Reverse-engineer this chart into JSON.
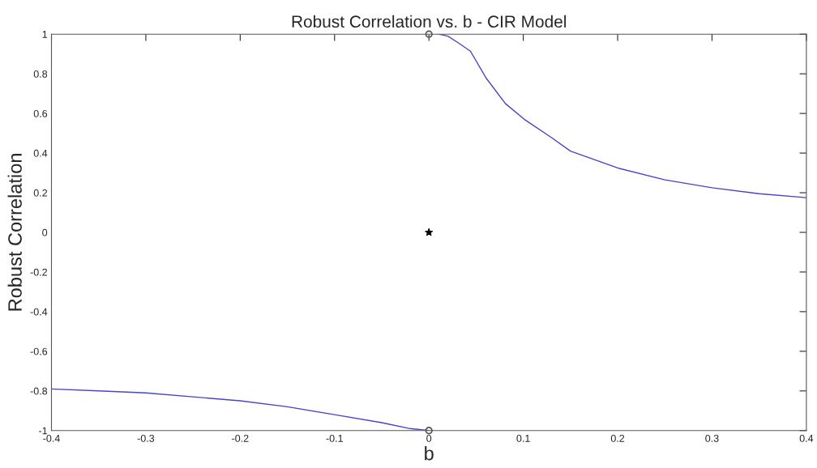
{
  "chart_data": {
    "type": "line",
    "title": "Robust Correlation vs. b - CIR Model",
    "xlabel": "b",
    "ylabel": "Robust Correlation",
    "xlim": [
      -0.4,
      0.4
    ],
    "ylim": [
      -1,
      1
    ],
    "xticks": [
      -0.4,
      -0.3,
      -0.2,
      -0.1,
      0,
      0.1,
      0.2,
      0.3,
      0.4
    ],
    "yticks": [
      -1,
      -0.8,
      -0.6,
      -0.4,
      -0.2,
      0,
      0.2,
      0.4,
      0.6,
      0.8,
      1
    ],
    "grid": false,
    "legend": false,
    "series": [
      {
        "color": "#4444cc",
        "x": [
          -0.4,
          -0.35,
          -0.3,
          -0.25,
          -0.2,
          -0.15,
          -0.1,
          -0.05,
          -0.02,
          0
        ],
        "values": [
          -0.79,
          -0.8,
          -0.81,
          -0.83,
          -0.85,
          -0.88,
          -0.92,
          -0.96,
          -0.99,
          -1
        ]
      },
      {
        "color": "#4444cc",
        "x": [
          0.01,
          0.02,
          0.03,
          0.044,
          0.061,
          0.081,
          0.102,
          0.13,
          0.15,
          0.2,
          0.25,
          0.3,
          0.35,
          0.4
        ],
        "values": [
          1,
          0.99,
          0.96,
          0.914,
          0.776,
          0.65,
          0.567,
          0.478,
          0.41,
          0.325,
          0.265,
          0.225,
          0.195,
          0.175
        ]
      },
      {
        "type": "scatter",
        "color": "#555555",
        "marker": "circle",
        "x": [
          0,
          0
        ],
        "values": [
          1,
          -1
        ]
      },
      {
        "type": "scatter",
        "color": "#000000",
        "marker": "star",
        "x": [
          0
        ],
        "values": [
          0
        ]
      }
    ]
  }
}
